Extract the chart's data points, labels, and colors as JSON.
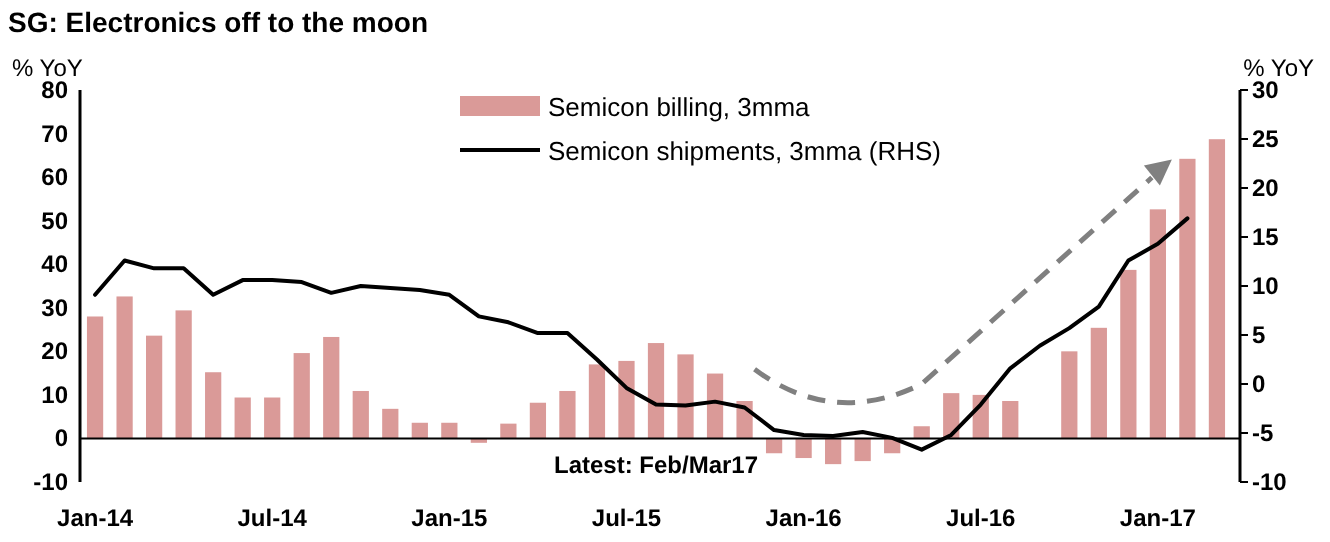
{
  "chart_data": {
    "type": "bar",
    "title": "SG: Electronics off to the moon",
    "ylabel": "% YoY",
    "y2label": "% YoY",
    "categories": [
      "Jan-14",
      null,
      null,
      null,
      null,
      null,
      "Jul-14",
      null,
      null,
      null,
      null,
      null,
      "Jan-15",
      null,
      null,
      null,
      null,
      null,
      "Jul-15",
      null,
      null,
      null,
      null,
      null,
      "Jan-16",
      null,
      null,
      null,
      null,
      null,
      "Jul-16",
      null,
      null,
      null,
      null,
      null,
      "Jan-17",
      null,
      null
    ],
    "series": [
      {
        "name": "Semicon billing, 3mma",
        "color": "#da9a98",
        "values": [
          28,
          32.6,
          23.6,
          29.4,
          15.2,
          9.4,
          9.4,
          19.6,
          23.3,
          10.9,
          6.8,
          3.6,
          3.6,
          -1,
          3.4,
          8.2,
          10.9,
          17,
          17.8,
          21.9,
          19.3,
          14.9,
          8.6,
          -3.4,
          -4.5,
          -5.9,
          -5.2,
          -3.4,
          2.8,
          10.4,
          10,
          8.6,
          0,
          20,
          25.4,
          38.7,
          52.6,
          64.2,
          68.7
        ]
      },
      {
        "name": "Semicon shipments, 3mma (RHS)",
        "type": "line",
        "axis": "y2",
        "color": "#000000",
        "values": [
          9.1,
          12.6,
          11.8,
          11.8,
          9.1,
          10.6,
          10.6,
          10.4,
          9.3,
          10,
          9.8,
          9.6,
          9.1,
          6.9,
          6.3,
          5.2,
          5.2,
          2.5,
          -0.4,
          -2.1,
          -2.2,
          -1.8,
          -2.4,
          -4.7,
          -5.2,
          -5.3,
          -4.9,
          -5.5,
          -6.7,
          -5.2,
          -2.1,
          1.6,
          3.9,
          5.7,
          7.9,
          12.6,
          14.3,
          16.9,
          null
        ]
      }
    ],
    "ylim": [
      -10,
      80
    ],
    "yticks": [
      -10,
      0,
      10,
      20,
      30,
      40,
      50,
      60,
      70,
      80
    ],
    "y2lim": [
      -10,
      30
    ],
    "y2ticks": [
      -10,
      -5,
      0,
      5,
      10,
      15,
      20,
      25,
      30
    ],
    "legend": "top",
    "annotations": [
      "Latest: Feb/Mar17"
    ]
  }
}
